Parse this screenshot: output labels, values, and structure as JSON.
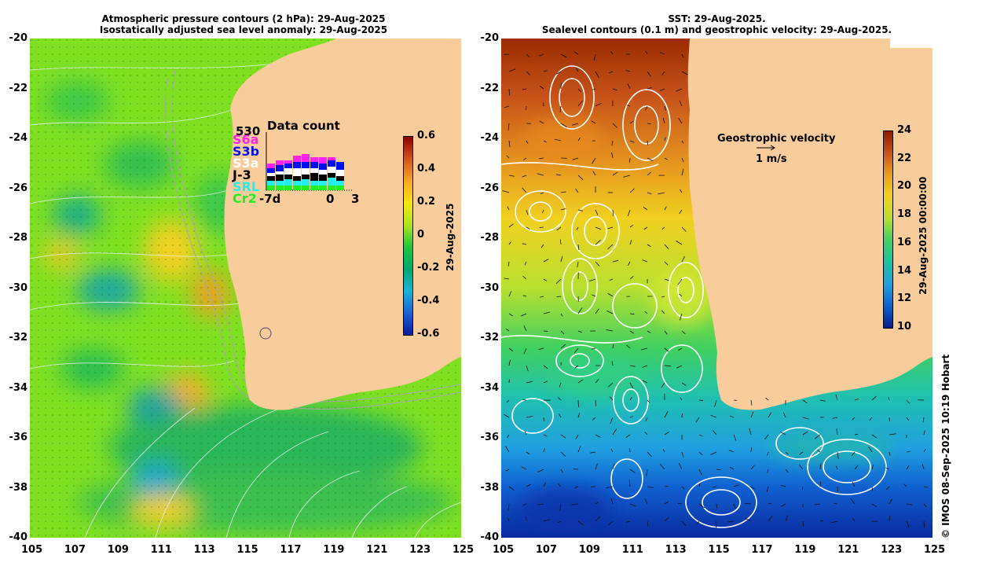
{
  "left": {
    "title_line1": "Atmospheric pressure contours (2 hPa): 29-Aug-2025",
    "title_line2": "Isostatically adjusted sea level anomaly: 29-Aug-2025",
    "colorbar": {
      "label": "29-Aug-2025",
      "ticks": [
        "0.6",
        "0.4",
        "0.2",
        "0",
        "-0.2",
        "-0.4",
        "-0.6"
      ],
      "colors": [
        "#8b0000",
        "#d2531c",
        "#f5a623",
        "#f5e50a",
        "#aee61d",
        "#22c63a",
        "#00a870",
        "#1ab3d6",
        "#1a62d6",
        "#0a1aa0"
      ]
    },
    "datacount": {
      "count": "530",
      "title": "Data count",
      "satellites": [
        {
          "name": "S6a",
          "color": "#ff22ee"
        },
        {
          "name": "S3b",
          "color": "#0011ee"
        },
        {
          "name": "S3a",
          "color": "#ffffff"
        },
        {
          "name": "J-3",
          "color": "#000000"
        },
        {
          "name": "SRL",
          "color": "#22eeee"
        },
        {
          "name": "Cr2",
          "color": "#22ee22"
        }
      ],
      "xlabels": [
        "-7d",
        "0",
        "3"
      ]
    }
  },
  "right": {
    "title_line1": "SST: 29-Aug-2025.",
    "title_line2": "Sealevel contours (0.1 m) and geostrophic velocity: 29-Aug-2025.",
    "colorbar": {
      "label": "29-Aug-2025 00:00:00",
      "ticks": [
        "24",
        "22",
        "20",
        "18",
        "16",
        "14",
        "12",
        "10"
      ],
      "colors": [
        "#8b1a00",
        "#c8541a",
        "#e8a020",
        "#f0d020",
        "#b8e030",
        "#40d060",
        "#20c0a0",
        "#20a0e0",
        "#1060d0",
        "#0a1a90"
      ]
    },
    "legend_title": "Geostrophic velocity",
    "legend_scale": "1 m/s"
  },
  "axes": {
    "x_ticks": [
      "105",
      "107",
      "109",
      "111",
      "113",
      "115",
      "117",
      "119",
      "121",
      "123",
      "125"
    ],
    "y_ticks": [
      "-20",
      "-22",
      "-24",
      "-26",
      "-28",
      "-30",
      "-32",
      "-34",
      "-36",
      "-38",
      "-40"
    ]
  },
  "credit": "© IMOS 08-Sep-2025 10:19 Hobart"
}
